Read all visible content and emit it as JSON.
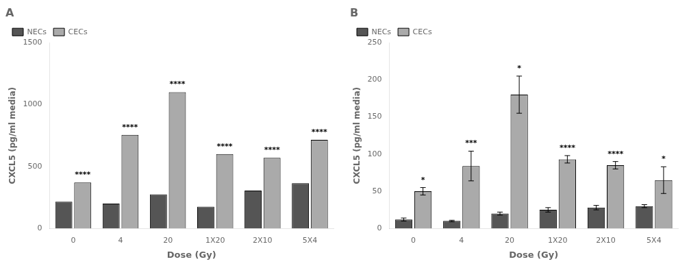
{
  "chart_data": [
    {
      "type": "bar",
      "title": "A",
      "categories": [
        "0",
        "4",
        "20",
        "1X20",
        "2X10",
        "5X4"
      ],
      "series": [
        {
          "name": "NECs",
          "color": "#555555",
          "values": [
            215,
            200,
            275,
            175,
            305,
            365
          ]
        },
        {
          "name": "CECs",
          "color": "#aaaaaa",
          "values": [
            370,
            755,
            1100,
            600,
            570,
            715
          ],
          "significance": [
            "****",
            "****",
            "****",
            "****",
            "****",
            "****"
          ]
        }
      ],
      "xlabel": "Dose (Gy)",
      "ylabel": "CXCL5 (pg/ml media)",
      "ylim": [
        0,
        1500
      ],
      "yticks": [
        0,
        500,
        1000,
        1500
      ],
      "grid": false,
      "legend": "upper left"
    },
    {
      "type": "bar",
      "title": "B",
      "categories": [
        "0",
        "4",
        "20",
        "1X20",
        "2X10",
        "5X4"
      ],
      "series": [
        {
          "name": "NECs",
          "color": "#555555",
          "values": [
            12,
            10,
            20,
            25,
            28,
            30
          ],
          "errors": [
            2,
            1,
            2,
            3,
            3,
            2
          ]
        },
        {
          "name": "CECs",
          "color": "#aaaaaa",
          "values": [
            50,
            84,
            180,
            93,
            85,
            65
          ],
          "errors": [
            5,
            20,
            25,
            5,
            5,
            18
          ],
          "significance": [
            "*",
            "***",
            "*",
            "****",
            "****",
            "*"
          ]
        }
      ],
      "xlabel": "Dose (Gy)",
      "ylabel": "CXCL5 (pg/ml media)",
      "ylim": [
        0,
        250
      ],
      "yticks": [
        0,
        50,
        100,
        150,
        200,
        250
      ],
      "grid": false,
      "legend": "upper left"
    }
  ]
}
